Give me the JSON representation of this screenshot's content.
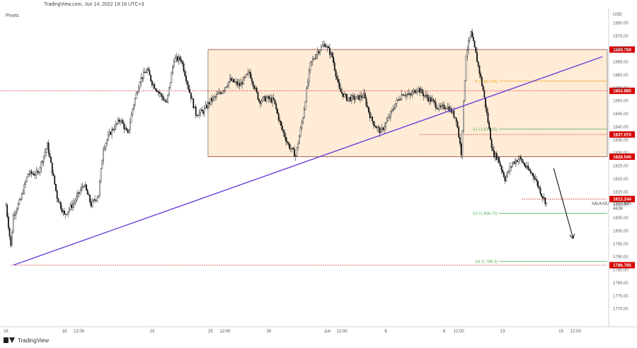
{
  "header": {
    "source": "TradingView.com, Jun 14, 2022 19:16 UTC+3"
  },
  "pane_label": "Pivots",
  "footer": {
    "brand": "TradingView"
  },
  "chart_data": {
    "type": "candlestick",
    "symbol": "XAUUSD",
    "currency": "USD",
    "ylim": [
      1765,
      1885
    ],
    "y_ticks": [
      1770.0,
      1775.0,
      1780.0,
      1785.0,
      1790.0,
      1795.0,
      1800.0,
      1805.0,
      1810.0,
      1815.0,
      1820.0,
      1825.0,
      1830.0,
      1835.0,
      1840.0,
      1845.0,
      1850.0,
      1855.0,
      1860.0,
      1865.0,
      1870.0,
      1875.0,
      1880.0
    ],
    "x_ticks": [
      {
        "label": "16",
        "t": 0
      },
      {
        "label": "18",
        "t": 48
      },
      {
        "label": "12:00",
        "t": 60
      },
      {
        "label": "23",
        "t": 120
      },
      {
        "label": "25",
        "t": 168
      },
      {
        "label": "12:00",
        "t": 180
      },
      {
        "label": "30",
        "t": 216
      },
      {
        "label": "Jun",
        "t": 264
      },
      {
        "label": "12:00",
        "t": 276
      },
      {
        "label": "6",
        "t": 312
      },
      {
        "label": "8",
        "t": 360
      },
      {
        "label": "12:00",
        "t": 372
      },
      {
        "label": "13",
        "t": 408
      },
      {
        "label": "15",
        "t": 456
      },
      {
        "label": "12:00",
        "t": 468
      }
    ],
    "x_range": [
      -2,
      494
    ],
    "last_bar_t": 444,
    "price_levels": [
      {
        "label": "1869.750",
        "value": 1869.75,
        "t_start": 166
      },
      {
        "label": "1853.885",
        "value": 1853.885,
        "t_start": -6
      },
      {
        "label": "1837.070",
        "value": 1837.07,
        "t_start": 340
      },
      {
        "label": "1828.540",
        "value": 1828.54,
        "t_start": 166
      },
      {
        "label": "1812.244",
        "value": 1812.244,
        "t_start": 424
      },
      {
        "label": "1786.785",
        "value": 1786.785,
        "t_start": 4
      }
    ],
    "pivots": [
      {
        "label": "P (1,857.58)",
        "value": 1857.58,
        "color": "#f5a623"
      },
      {
        "label": "S1 (1,839.15)",
        "value": 1839.15,
        "color": "#4caf50"
      },
      {
        "label": "S2 (1,806.72)",
        "value": 1806.72,
        "color": "#4caf50"
      },
      {
        "label": "S3 (1,788.3)",
        "value": 1788.3,
        "color": "#4caf50"
      }
    ],
    "current_price": {
      "label": "1810.645",
      "sub": "44:00",
      "value": 1810.645
    },
    "range_box": {
      "t_start": 166,
      "t_end": 494,
      "top": 1869.75,
      "bottom": 1828.54
    },
    "trendline": {
      "t1": 6,
      "v1": 1786.8,
      "t2": 490,
      "v2": 1867.0
    },
    "arrow": {
      "t1": 450,
      "v1": 1824.0,
      "t2": 466,
      "v2": 1797.0
    },
    "anchors": [
      {
        "t": 0,
        "v": 1810
      },
      {
        "t": 4,
        "v": 1794
      },
      {
        "t": 6,
        "v": 1806
      },
      {
        "t": 12,
        "v": 1812
      },
      {
        "t": 18,
        "v": 1822
      },
      {
        "t": 26,
        "v": 1822
      },
      {
        "t": 34,
        "v": 1833
      },
      {
        "t": 42,
        "v": 1813
      },
      {
        "t": 48,
        "v": 1806
      },
      {
        "t": 56,
        "v": 1811
      },
      {
        "t": 64,
        "v": 1818
      },
      {
        "t": 70,
        "v": 1810
      },
      {
        "t": 76,
        "v": 1814
      },
      {
        "t": 80,
        "v": 1832
      },
      {
        "t": 86,
        "v": 1838
      },
      {
        "t": 94,
        "v": 1843
      },
      {
        "t": 100,
        "v": 1837
      },
      {
        "t": 104,
        "v": 1847
      },
      {
        "t": 110,
        "v": 1858
      },
      {
        "t": 116,
        "v": 1862
      },
      {
        "t": 120,
        "v": 1857
      },
      {
        "t": 126,
        "v": 1853
      },
      {
        "t": 132,
        "v": 1849
      },
      {
        "t": 138,
        "v": 1866
      },
      {
        "t": 144,
        "v": 1866
      },
      {
        "t": 150,
        "v": 1855
      },
      {
        "t": 156,
        "v": 1845
      },
      {
        "t": 162,
        "v": 1846
      },
      {
        "t": 168,
        "v": 1850
      },
      {
        "t": 176,
        "v": 1853
      },
      {
        "t": 184,
        "v": 1858
      },
      {
        "t": 192,
        "v": 1856
      },
      {
        "t": 200,
        "v": 1861
      },
      {
        "t": 208,
        "v": 1850
      },
      {
        "t": 214,
        "v": 1851
      },
      {
        "t": 220,
        "v": 1850
      },
      {
        "t": 226,
        "v": 1840
      },
      {
        "t": 232,
        "v": 1833
      },
      {
        "t": 238,
        "v": 1829
      },
      {
        "t": 244,
        "v": 1844
      },
      {
        "t": 250,
        "v": 1864
      },
      {
        "t": 256,
        "v": 1869
      },
      {
        "t": 262,
        "v": 1872
      },
      {
        "t": 268,
        "v": 1867
      },
      {
        "t": 274,
        "v": 1854
      },
      {
        "t": 280,
        "v": 1851
      },
      {
        "t": 288,
        "v": 1851
      },
      {
        "t": 294,
        "v": 1852
      },
      {
        "t": 300,
        "v": 1843
      },
      {
        "t": 304,
        "v": 1840
      },
      {
        "t": 308,
        "v": 1838
      },
      {
        "t": 314,
        "v": 1843
      },
      {
        "t": 320,
        "v": 1849
      },
      {
        "t": 326,
        "v": 1853
      },
      {
        "t": 332,
        "v": 1852
      },
      {
        "t": 338,
        "v": 1855
      },
      {
        "t": 344,
        "v": 1852
      },
      {
        "t": 350,
        "v": 1850
      },
      {
        "t": 356,
        "v": 1847
      },
      {
        "t": 362,
        "v": 1848
      },
      {
        "t": 366,
        "v": 1846
      },
      {
        "t": 370,
        "v": 1843
      },
      {
        "t": 374,
        "v": 1830
      },
      {
        "t": 378,
        "v": 1868
      },
      {
        "t": 382,
        "v": 1876
      },
      {
        "t": 386,
        "v": 1868
      },
      {
        "t": 392,
        "v": 1854
      },
      {
        "t": 396,
        "v": 1842
      },
      {
        "t": 400,
        "v": 1830
      },
      {
        "t": 404,
        "v": 1828
      },
      {
        "t": 410,
        "v": 1820
      },
      {
        "t": 416,
        "v": 1826
      },
      {
        "t": 422,
        "v": 1828
      },
      {
        "t": 428,
        "v": 1824
      },
      {
        "t": 434,
        "v": 1821
      },
      {
        "t": 440,
        "v": 1814
      },
      {
        "t": 444,
        "v": 1810.6
      }
    ]
  }
}
